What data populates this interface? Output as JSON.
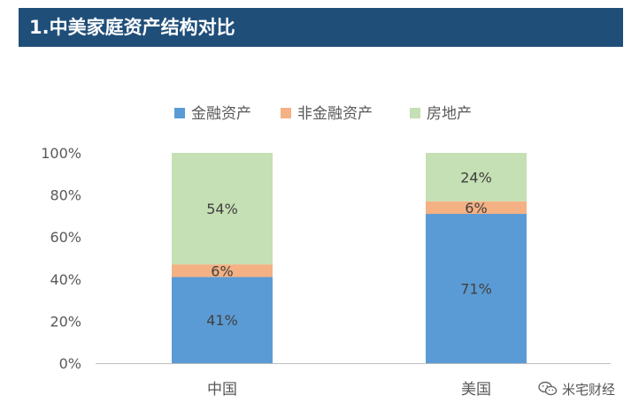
{
  "header": {
    "title": "1.中美家庭资产结构对比"
  },
  "watermark": {
    "text": "米宅财经",
    "icon": "wechat-icon"
  },
  "chart_data": {
    "type": "bar",
    "stacked": true,
    "categories": [
      "中国",
      "美国"
    ],
    "series": [
      {
        "name": "金融资产",
        "values": [
          41,
          71
        ],
        "labels": [
          "41%",
          "71%"
        ],
        "color": "#5b9bd5"
      },
      {
        "name": "非金融资产",
        "values": [
          6,
          6
        ],
        "labels": [
          "6%",
          "6%"
        ],
        "color": "#f4b183"
      },
      {
        "name": "房地产",
        "values": [
          54,
          24
        ],
        "labels": [
          "54%",
          "24%"
        ],
        "color": "#c5e0b4"
      }
    ],
    "ylim": [
      0,
      100
    ],
    "yticks": [
      "0%",
      "20%",
      "40%",
      "60%",
      "80%",
      "100%"
    ],
    "legend_position": "top-center",
    "grid": false
  }
}
